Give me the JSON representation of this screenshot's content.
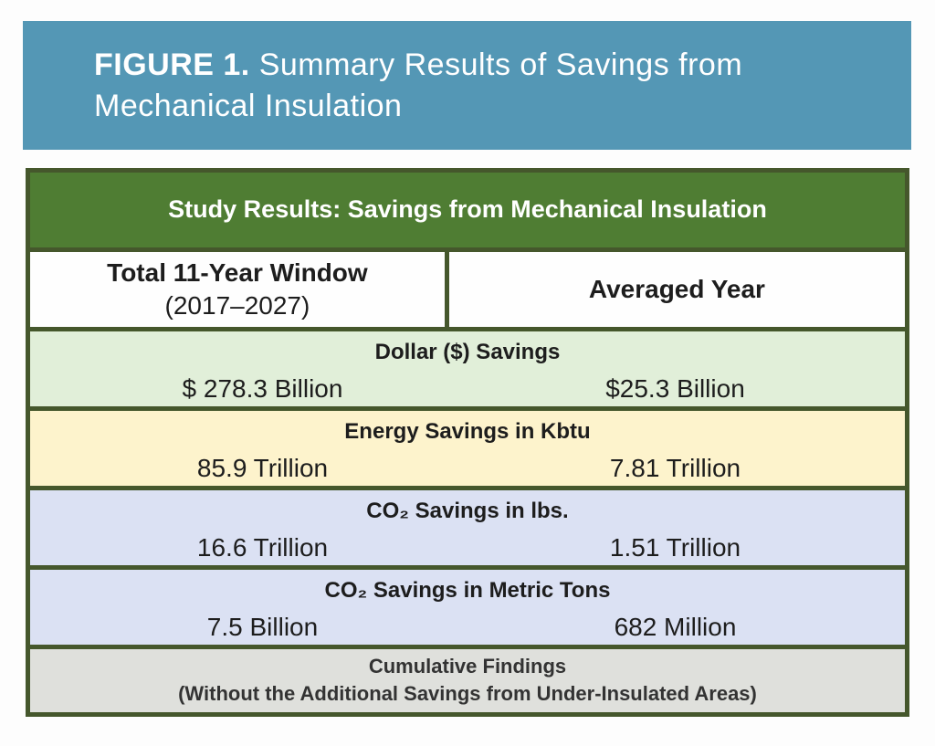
{
  "banner": {
    "figure_label": "FIGURE 1.",
    "title": "Summary Results of Savings from Mechanical Insulation",
    "background_color": "#5497b5",
    "text_color": "#ffffff"
  },
  "table": {
    "title": "Study Results: Savings from Mechanical Insulation",
    "column_headers": {
      "left_main": "Total 11-Year Window",
      "left_sub": "(2017–2027)",
      "right_main": "Averaged Year"
    },
    "rows": [
      {
        "category": "Dollar ($) Savings",
        "total": "$ 278.3 Billion",
        "averaged": "$25.3 Billion",
        "background": "#e1efd9"
      },
      {
        "category": "Energy Savings in Kbtu",
        "total": "85.9 Trillion",
        "averaged": "7.81 Trillion",
        "background": "#fdf3cc"
      },
      {
        "category": "CO₂ Savings in lbs.",
        "total": "16.6 Trillion",
        "averaged": "1.51 Trillion",
        "background": "#dbe1f3"
      },
      {
        "category": "CO₂ Savings in Metric Tons",
        "total": "7.5 Billion",
        "averaged": "682 Million",
        "background": "#dbe1f3"
      }
    ],
    "footer": {
      "line1": "Cumulative Findings",
      "line2": "(Without the Additional Savings from Under-Insulated Areas)"
    },
    "colors": {
      "title_bar_green": "#4f7d33",
      "border_green": "#45572c",
      "footer_gray": "#dfe0dc"
    }
  }
}
